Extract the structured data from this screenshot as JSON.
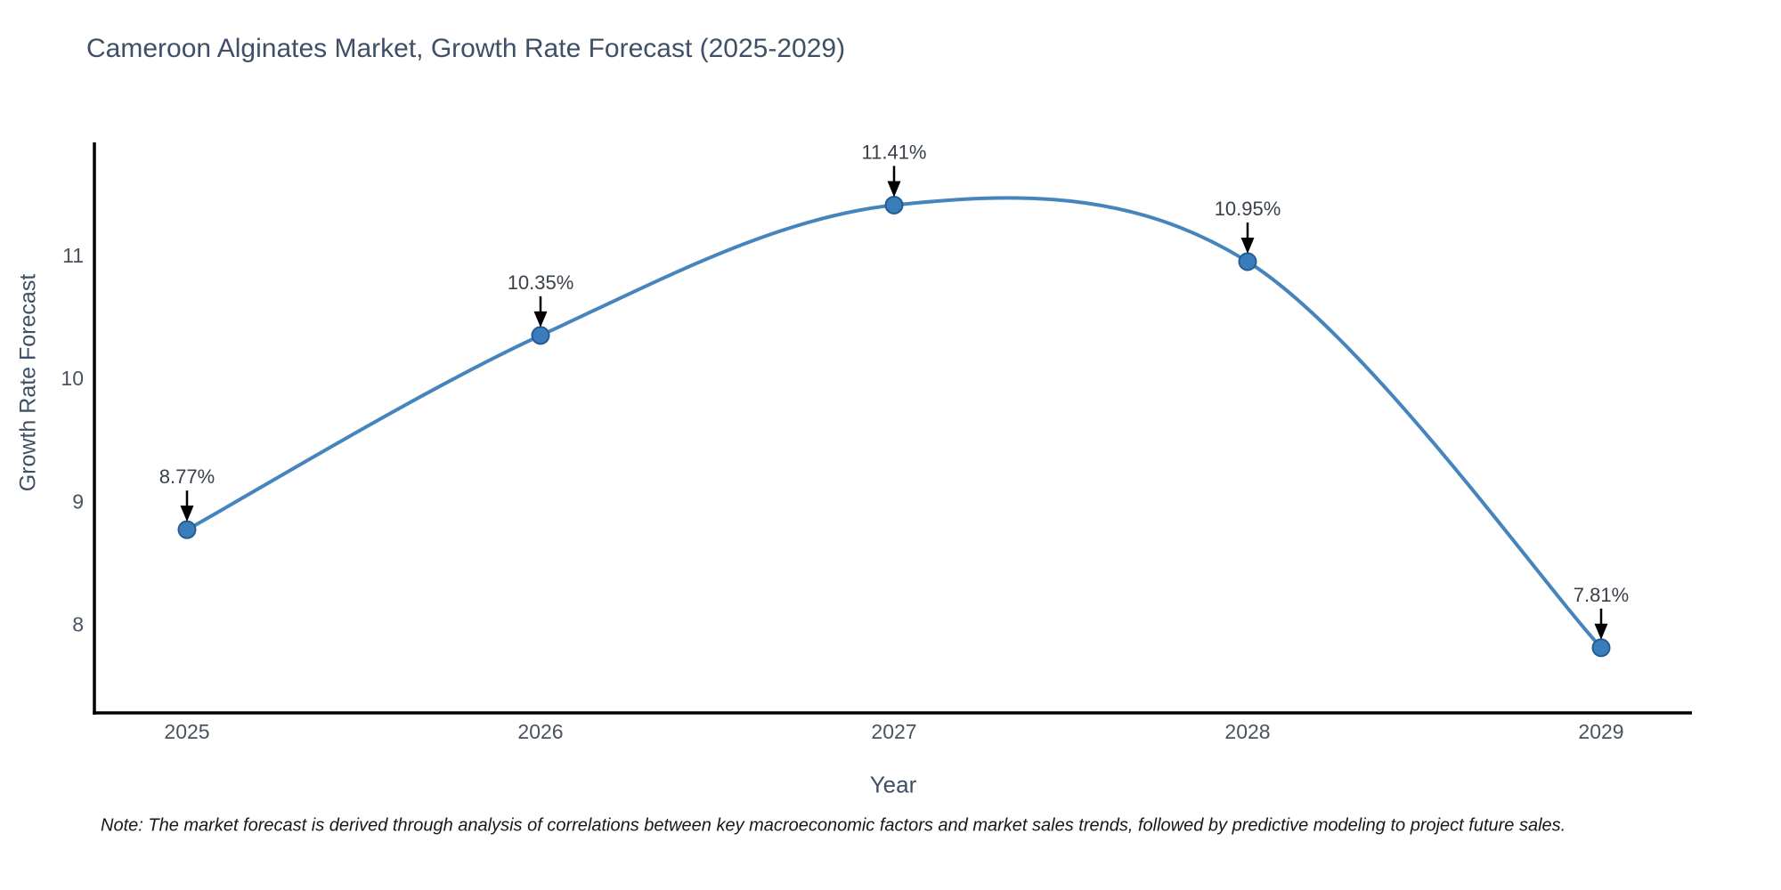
{
  "page": {
    "background": "#ffffff"
  },
  "chart_data": {
    "type": "line",
    "title": "Cameroon Alginates Market, Growth Rate Forecast (2025-2029)",
    "xlabel": "Year",
    "ylabel": "Growth Rate Forecast",
    "x": [
      2025,
      2026,
      2027,
      2028,
      2029
    ],
    "values": [
      8.77,
      10.35,
      11.41,
      10.95,
      7.81
    ],
    "point_labels": [
      "8.77%",
      "10.35%",
      "11.41%",
      "10.95%",
      "7.81%"
    ],
    "xticks": [
      "2025",
      "2026",
      "2027",
      "2028",
      "2029"
    ],
    "yticks": [
      8,
      9,
      10,
      11
    ],
    "ylim": [
      7.28,
      11.92
    ],
    "xlim": [
      2025,
      2029
    ],
    "grid": false,
    "legend": "none",
    "line_shape": "spline",
    "colors": {
      "line": "#4584bc",
      "marker_fill": "#3b7cba",
      "marker_stroke": "#255d92",
      "axis_line": "#000000",
      "tick_label": "#4a5260",
      "annotation_text": "#3a4049",
      "annotation_arrow": "#000000",
      "title_text": "#3f5066"
    },
    "note": "Note: The market forecast is derived through analysis of correlations between key macroeconomic factors and market sales trends, followed by predictive modeling to project future sales."
  }
}
